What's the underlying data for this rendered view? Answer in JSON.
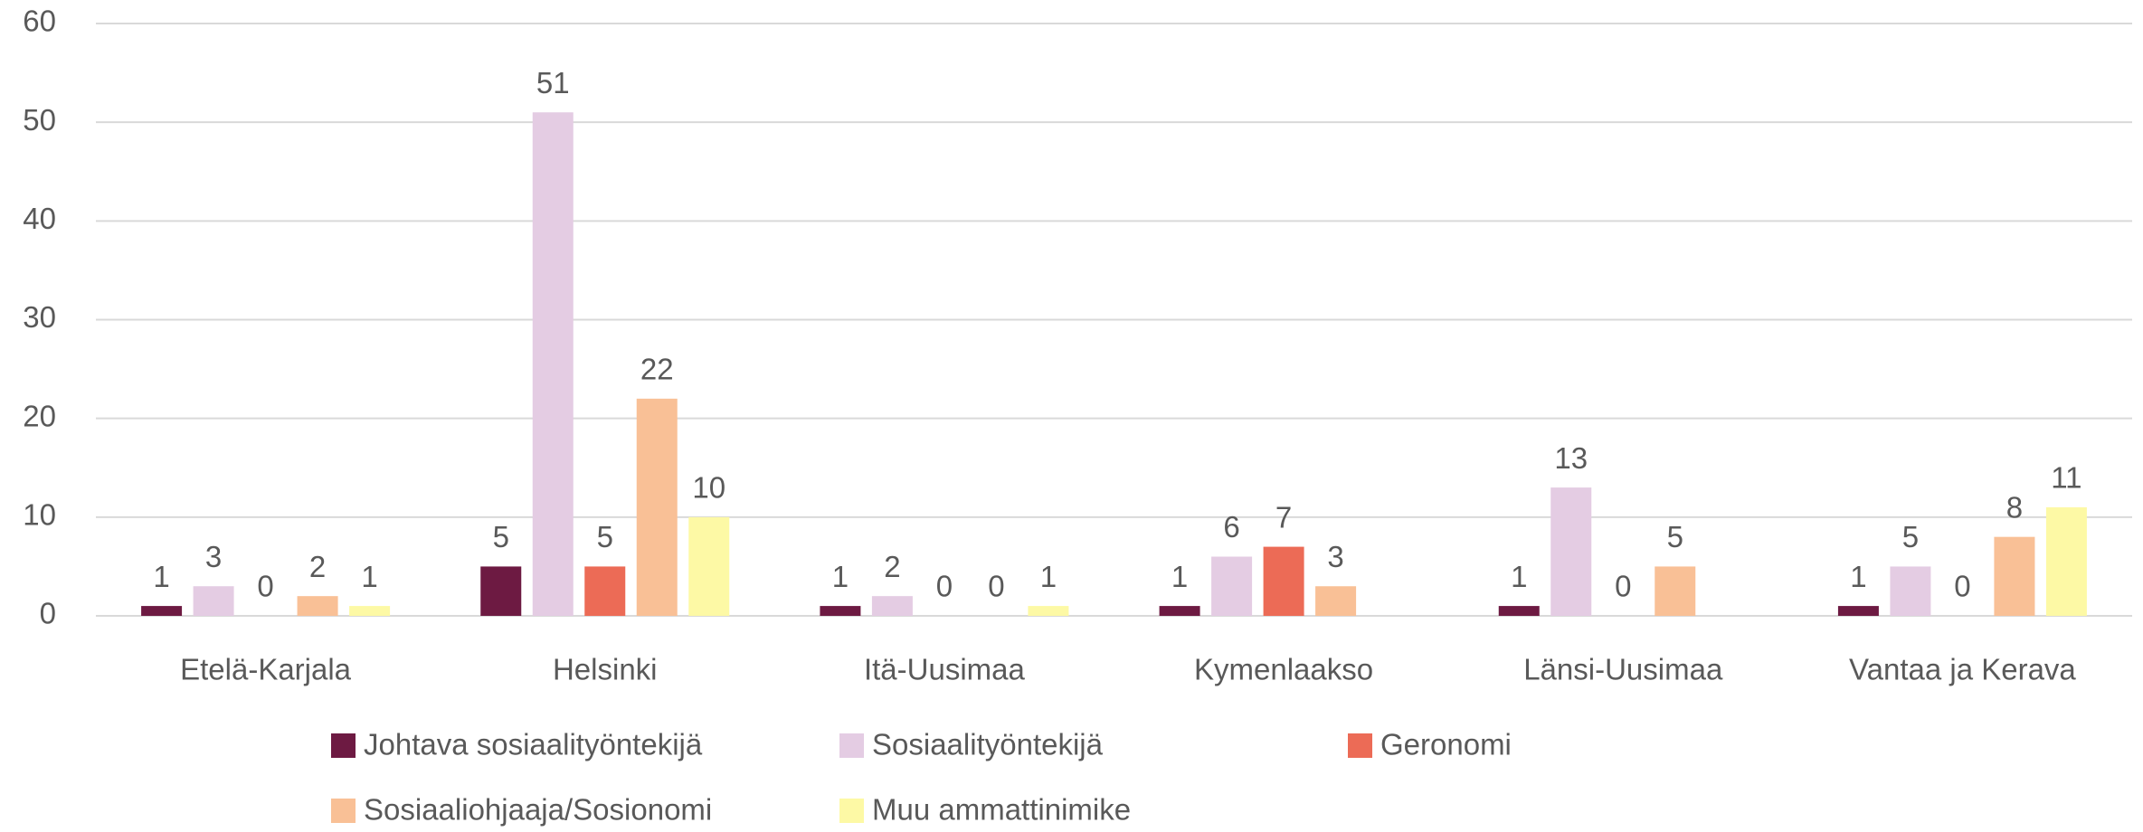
{
  "chart_data": {
    "type": "bar",
    "categories": [
      "Etelä-Karjala",
      "Helsinki",
      "Itä-Uusimaa",
      "Kymenlaakso",
      "Länsi-Uusimaa",
      "Vantaa ja Kerava"
    ],
    "series": [
      {
        "name": "Johtava sosiaalityöntekijä",
        "color": "#6d1a42",
        "values": [
          1,
          5,
          1,
          1,
          1,
          1
        ]
      },
      {
        "name": "Sosiaalityöntekijä",
        "color": "#e4cce3",
        "values": [
          3,
          51,
          2,
          6,
          13,
          5
        ]
      },
      {
        "name": "Geronomi",
        "color": "#ec6b56",
        "values": [
          0,
          5,
          0,
          7,
          0,
          0
        ]
      },
      {
        "name": "Sosiaaliohjaaja/Sosionomi",
        "color": "#f9c096",
        "values": [
          2,
          22,
          0,
          3,
          5,
          8
        ]
      },
      {
        "name": "Muu ammattinimike",
        "color": "#fdf9a5",
        "values": [
          1,
          10,
          1,
          null,
          null,
          11
        ]
      }
    ],
    "ylim": [
      0,
      60
    ],
    "yticks": [
      0,
      10,
      20,
      30,
      40,
      50,
      60
    ],
    "grid": true,
    "legend": "bottom"
  }
}
